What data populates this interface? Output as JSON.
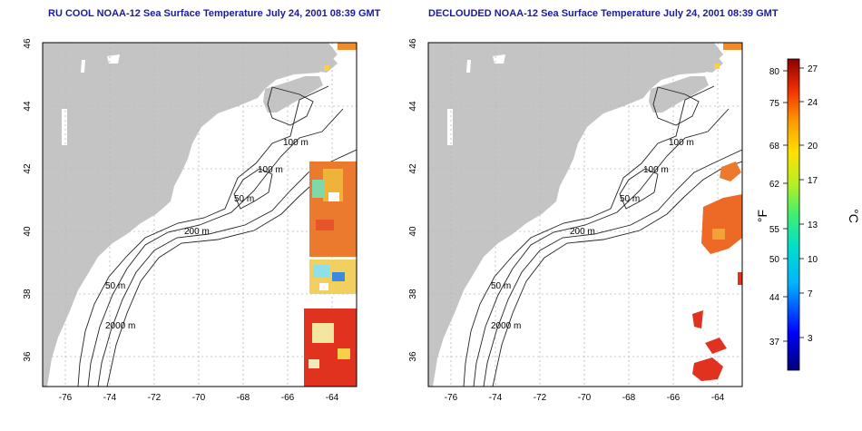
{
  "maps": [
    {
      "title": "RU COOL NOAA-12 Sea Surface Temperature July 24, 2001 08:39 GMT",
      "x_ticks": [
        "-76",
        "-74",
        "-72",
        "-70",
        "-68",
        "-66",
        "-64"
      ],
      "y_ticks": [
        "46",
        "44",
        "42",
        "40",
        "38",
        "36"
      ],
      "contour_labels": [
        "100 m",
        "100 m",
        "50 m",
        "200 m",
        "50 m",
        "2000 m"
      ]
    },
    {
      "title": "DECLOUDED NOAA-12 Sea Surface Temperature July 24, 2001 08:39 GMT",
      "x_ticks": [
        "-76",
        "-74",
        "-72",
        "-70",
        "-68",
        "-66",
        "-64"
      ],
      "y_ticks": [
        "46",
        "44",
        "42",
        "40",
        "38",
        "36"
      ],
      "contour_labels": [
        "100 m",
        "100 m",
        "50 m",
        "200 m",
        "50 m",
        "2000 m"
      ]
    }
  ],
  "colorbar": {
    "fahrenheit_unit": "°F",
    "celsius_unit": "°C",
    "fahrenheit_ticks": [
      "80",
      "75",
      "68",
      "62",
      "55",
      "50",
      "44",
      "37"
    ],
    "celsius_ticks": [
      "27",
      "24",
      "20",
      "17",
      "13",
      "10",
      "7",
      "3"
    ]
  },
  "colors": {
    "land": "#c4c4c4",
    "title": "#1a1aa0"
  }
}
